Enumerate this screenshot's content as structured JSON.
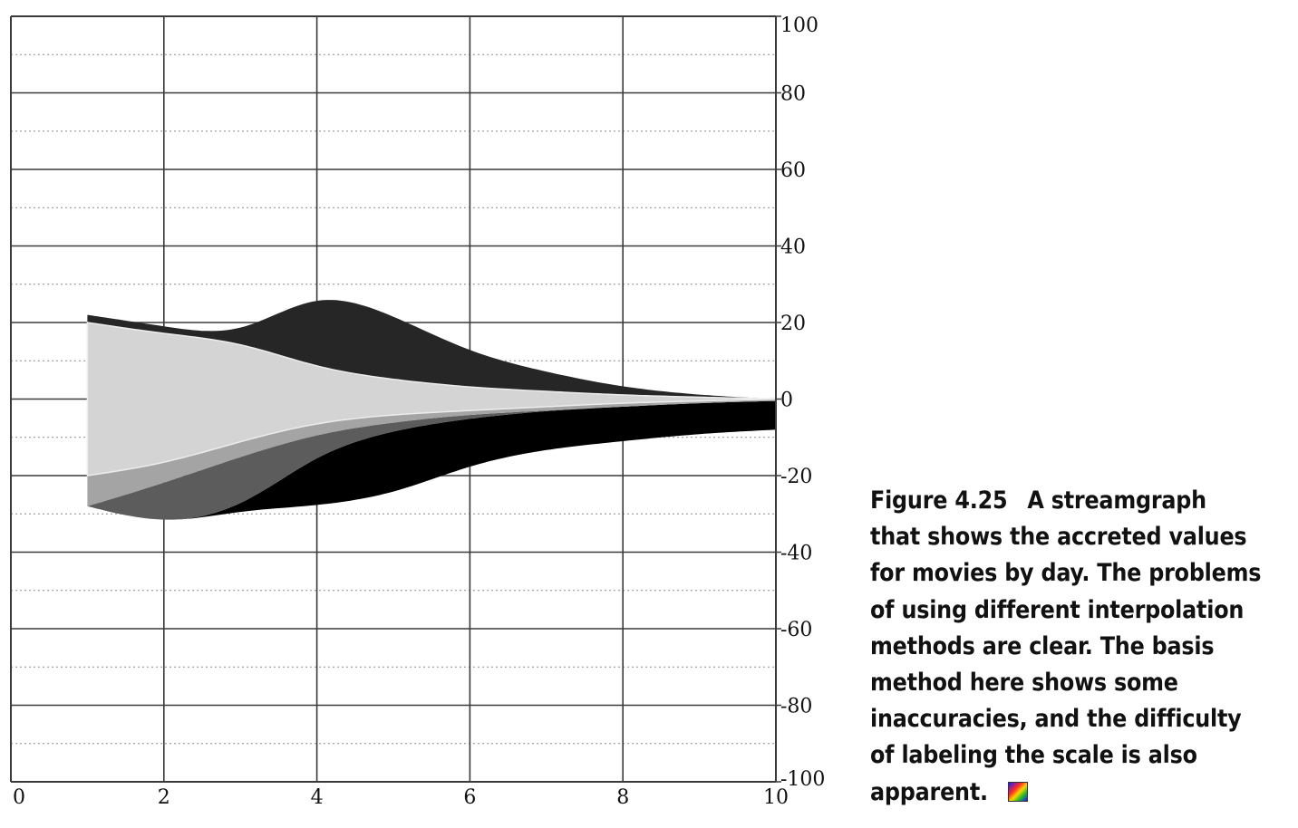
{
  "chart_data": {
    "type": "area",
    "subtype": "streamgraph",
    "interpolation": "basis",
    "x_axis": {
      "range": [
        0,
        10
      ],
      "ticks": [
        0,
        2,
        4,
        6,
        8,
        10
      ],
      "tick_labels": [
        "0",
        "2",
        "4",
        "6",
        "8",
        "10"
      ],
      "position": "bottom"
    },
    "y_axis": {
      "range": [
        -100,
        100
      ],
      "ticks": [
        100,
        80,
        60,
        40,
        20,
        0,
        -20,
        -40,
        -60,
        -80,
        -100
      ],
      "tick_labels": [
        "100",
        "80",
        "60",
        "40",
        "20",
        "0",
        "-20",
        "-40",
        "-60",
        "-80",
        "-100"
      ],
      "position": "right"
    },
    "grid": {
      "major": true,
      "minor_dotted": true
    },
    "x": [
      1,
      2,
      3,
      4,
      5,
      6,
      7,
      8,
      9,
      10
    ],
    "boundaries": [
      [
        22,
        19,
        16,
        29,
        22,
        12,
        7,
        3,
        1,
        0
      ],
      [
        20,
        17,
        15,
        8,
        5,
        3,
        2,
        1,
        0.5,
        0
      ],
      [
        -20,
        -17,
        -11,
        -6,
        -4,
        -3,
        -2,
        -1,
        -0.5,
        0
      ],
      [
        -28,
        -22,
        -15,
        -9,
        -6,
        -4,
        -3,
        -2,
        -1,
        -0.5
      ],
      [
        -28,
        -33,
        -29,
        -14,
        -8,
        -5,
        -3,
        -2,
        -1,
        -0.5
      ],
      [
        -28,
        -33,
        -29,
        -28,
        -25,
        -17,
        -13,
        -11,
        -9,
        -8
      ]
    ],
    "series": [
      {
        "color": "#262626"
      },
      {
        "color": "#d4d4d4"
      },
      {
        "color": "#a4a4a4"
      },
      {
        "color": "#5c5c5c"
      },
      {
        "color": "#000000"
      }
    ]
  },
  "caption": {
    "figure_number": "Figure 4.25",
    "lines": [
      "A streamgraph",
      "that shows the accreted values",
      "for movies by day. The problems",
      "of using different interpolation",
      "methods are clear. The basis",
      "method here shows some",
      "inaccuracies, and the difficulty",
      "of labeling the scale is also",
      "apparent."
    ],
    "icon": "color-figure-icon"
  }
}
